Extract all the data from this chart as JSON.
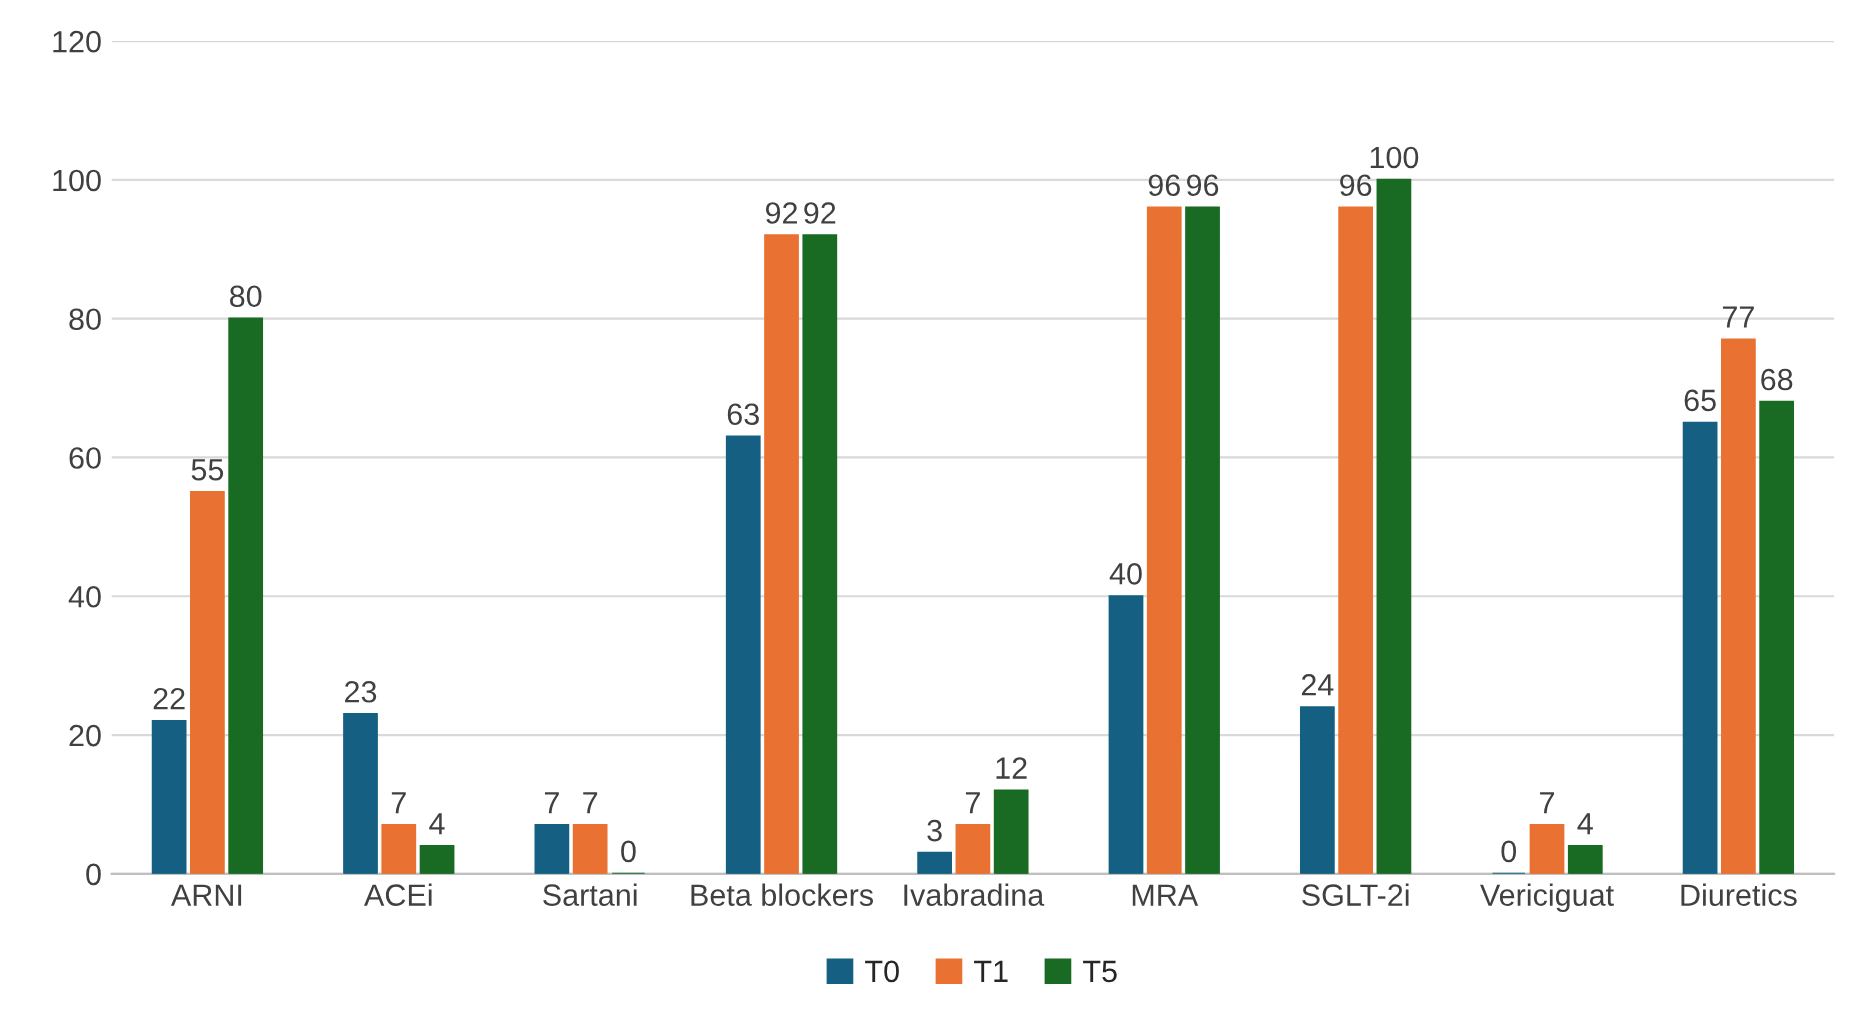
{
  "chart_data": {
    "type": "bar",
    "categories": [
      "ARNI",
      "ACEi",
      "Sartani",
      "Beta blockers",
      "Ivabradina",
      "MRA",
      "SGLT-2i",
      "Vericiguat",
      "Diuretics"
    ],
    "series": [
      {
        "name": "T0",
        "color": "#156082",
        "values": [
          22,
          23,
          7,
          63,
          3,
          40,
          24,
          0,
          65
        ]
      },
      {
        "name": "T1",
        "color": "#e97132",
        "values": [
          55,
          7,
          7,
          92,
          7,
          96,
          96,
          7,
          77
        ]
      },
      {
        "name": "T5",
        "color": "#196b24",
        "values": [
          80,
          4,
          0,
          92,
          12,
          96,
          100,
          4,
          68
        ]
      }
    ],
    "ylim": [
      0,
      120
    ],
    "yticks": [
      0,
      20,
      40,
      60,
      80,
      100,
      120
    ],
    "grid": "y",
    "legend": "bottom",
    "data_labels": true
  }
}
